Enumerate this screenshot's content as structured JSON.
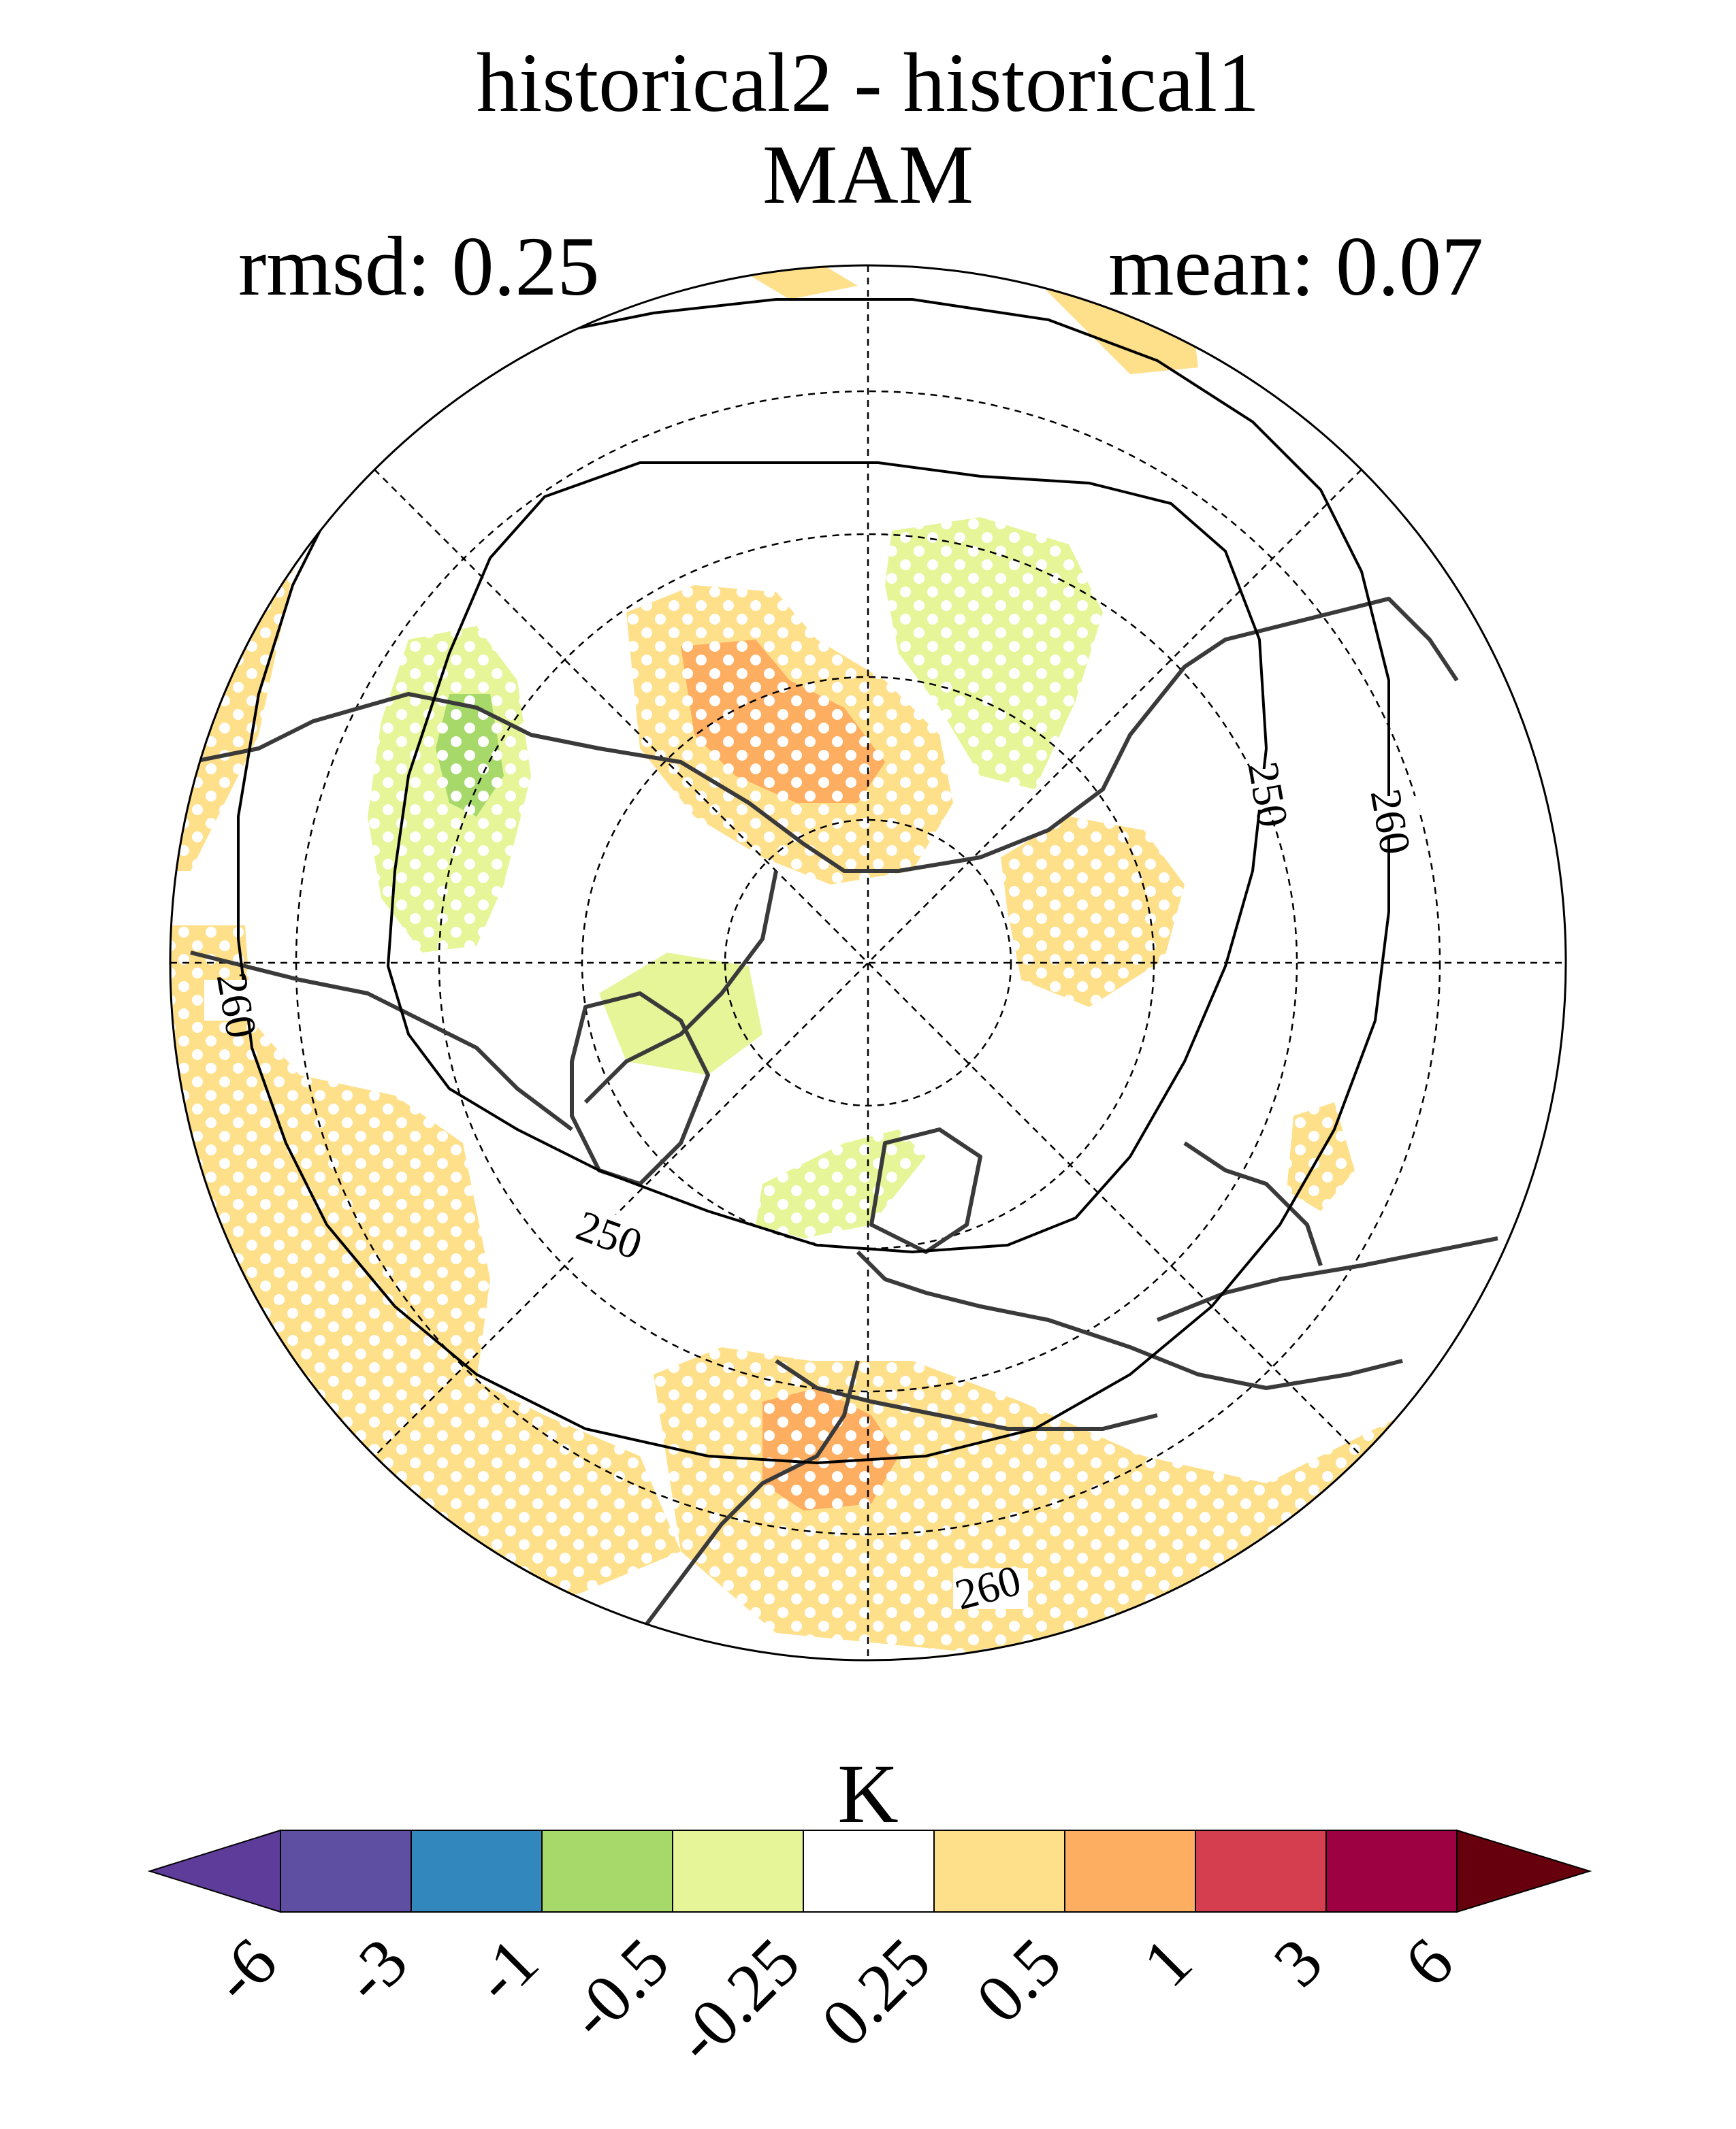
{
  "title": "historical2 - historical1",
  "season": "MAM",
  "stats": {
    "rmsd_label": "rmsd: 0.25",
    "mean_label": "mean: 0.07"
  },
  "map": {
    "projection": "north-polar-stereographic",
    "grid": true,
    "contour_labels": [
      "250",
      "260",
      "250",
      "260"
    ],
    "stippling": "white dots mark significant regions"
  },
  "colorbar": {
    "unit": "K",
    "levels": [
      "-6",
      "-3",
      "-1",
      "-0.5",
      "-0.25",
      "0.25",
      "0.5",
      "1",
      "3",
      "6"
    ],
    "colors": [
      "#5e3c99",
      "#5e4fa2",
      "#3288bd",
      "#a6d96a",
      "#e6f598",
      "#ffffff",
      "#fee08b",
      "#fdae61",
      "#d53e4f",
      "#9e0142",
      "#67000d"
    ]
  }
}
